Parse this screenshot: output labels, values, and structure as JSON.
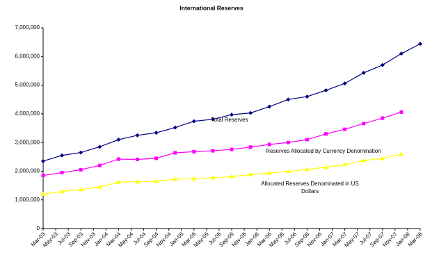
{
  "chart_data": {
    "type": "line",
    "title": "International Reserves",
    "x": [
      "2003-03",
      "2003-06",
      "2003-09",
      "2003-12",
      "2004-03",
      "2004-06",
      "2004-09",
      "2004-12",
      "2005-03",
      "2005-06",
      "2005-09",
      "2005-12",
      "2006-03",
      "2006-06",
      "2006-09",
      "2006-12",
      "2007-03",
      "2007-06",
      "2007-09",
      "2007-12",
      "2008-03"
    ],
    "series": [
      {
        "name": "Total Reserves",
        "color": "#000080",
        "marker": "diamond",
        "values": [
          2350000,
          2550000,
          2650000,
          2850000,
          3100000,
          3250000,
          3340000,
          3520000,
          3740000,
          3810000,
          3970000,
          4030000,
          4250000,
          4500000,
          4600000,
          4820000,
          5060000,
          5430000,
          5700000,
          6100000,
          6440000
        ]
      },
      {
        "name": "Reserves Allocated by Currency Denomination",
        "color": "#ff00ff",
        "marker": "square",
        "values": [
          1850000,
          1950000,
          2050000,
          2200000,
          2420000,
          2410000,
          2450000,
          2640000,
          2680000,
          2710000,
          2760000,
          2840000,
          2930000,
          3000000,
          3100000,
          3300000,
          3460000,
          3660000,
          3850000,
          4060000,
          null
        ]
      },
      {
        "name": "Allocated Reserves Denominated in US Dollars",
        "color": "#ffff00",
        "marker": "triangle",
        "values": [
          1200000,
          1290000,
          1360000,
          1450000,
          1620000,
          1630000,
          1650000,
          1720000,
          1740000,
          1770000,
          1810000,
          1880000,
          1940000,
          1990000,
          2060000,
          2140000,
          2230000,
          2370000,
          2440000,
          2590000,
          null
        ]
      }
    ],
    "xlim": [
      "2003-03",
      "2008-03"
    ],
    "xticks": [
      {
        "value": "2003-03",
        "label": "Mar-03"
      },
      {
        "value": "2003-05",
        "label": "May-03"
      },
      {
        "value": "2003-07",
        "label": "Jul-03"
      },
      {
        "value": "2003-09",
        "label": "Sep-03"
      },
      {
        "value": "2003-11",
        "label": "Nov-03"
      },
      {
        "value": "2004-01",
        "label": "Jan-04"
      },
      {
        "value": "2004-03",
        "label": "Mar-04"
      },
      {
        "value": "2004-05",
        "label": "May-04"
      },
      {
        "value": "2004-07",
        "label": "Jul-04"
      },
      {
        "value": "2004-09",
        "label": "Sep-04"
      },
      {
        "value": "2004-11",
        "label": "Nov-04"
      },
      {
        "value": "2005-01",
        "label": "Jan-05"
      },
      {
        "value": "2005-03",
        "label": "Mar-05"
      },
      {
        "value": "2005-05",
        "label": "May-05"
      },
      {
        "value": "2005-07",
        "label": "Jul-05"
      },
      {
        "value": "2005-09",
        "label": "Sep-05"
      },
      {
        "value": "2005-11",
        "label": "Nov-05"
      },
      {
        "value": "2006-01",
        "label": "Jan-06"
      },
      {
        "value": "2006-03",
        "label": "Mar-06"
      },
      {
        "value": "2006-05",
        "label": "May-06"
      },
      {
        "value": "2006-07",
        "label": "Jul-06"
      },
      {
        "value": "2006-09",
        "label": "Sep-06"
      },
      {
        "value": "2006-11",
        "label": "Nov-06"
      },
      {
        "value": "2007-01",
        "label": "Jan-07"
      },
      {
        "value": "2007-03",
        "label": "Mar-07"
      },
      {
        "value": "2007-05",
        "label": "May-07"
      },
      {
        "value": "2007-07",
        "label": "Jul-07"
      },
      {
        "value": "2007-09",
        "label": "Sep-07"
      },
      {
        "value": "2007-11",
        "label": "Nov-07"
      },
      {
        "value": "2008-01",
        "label": "Jan-08"
      },
      {
        "value": "2008-03",
        "label": "Mar-08"
      }
    ],
    "ylim": [
      0,
      7000000
    ],
    "yticks": [
      0,
      {
        "value": 1000000,
        "label": "1,000,000"
      },
      {
        "value": 2000000,
        "label": "2,000,000"
      },
      {
        "value": 3000000,
        "label": "3,000,000"
      },
      {
        "value": 4000000,
        "label": "4,000,000"
      },
      {
        "value": 5000000,
        "label": "5,000,000"
      },
      {
        "value": 6000000,
        "label": "6,000,000"
      },
      {
        "value": 7000000,
        "label": "7,000,000"
      }
    ],
    "grid": false
  }
}
